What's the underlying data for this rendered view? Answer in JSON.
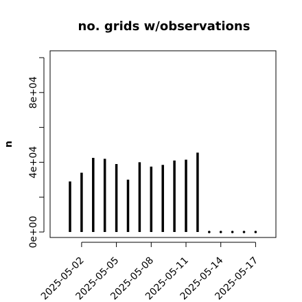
{
  "chart_data": {
    "type": "bar",
    "title": "no. grids w/observations",
    "xlabel": "",
    "ylabel": "n",
    "ylim": [
      0,
      100000
    ],
    "yticks": [
      0,
      20000,
      40000,
      60000,
      80000,
      100000
    ],
    "ytick_labels": [
      "0e+00",
      "",
      "4e+04",
      "",
      "8e+04",
      ""
    ],
    "x": [
      "2025-05-01",
      "2025-05-02",
      "2025-05-03",
      "2025-05-04",
      "2025-05-05",
      "2025-05-06",
      "2025-05-07",
      "2025-05-08",
      "2025-05-09",
      "2025-05-10",
      "2025-05-11",
      "2025-05-12",
      "2025-05-13",
      "2025-05-14",
      "2025-05-15",
      "2025-05-16",
      "2025-05-17"
    ],
    "values": [
      29000,
      34000,
      42500,
      42000,
      39000,
      30000,
      40000,
      37500,
      38500,
      41000,
      41500,
      45500,
      0,
      0,
      0,
      0,
      0
    ],
    "xticks": [
      "2025-05-02",
      "2025-05-05",
      "2025-05-08",
      "2025-05-11",
      "2025-05-14",
      "2025-05-17"
    ],
    "xtick_colors": [
      "#000000",
      "#000000",
      "#228B22",
      "#000000",
      "#000000",
      "#000000"
    ],
    "bar_color": "#000000",
    "grid": false,
    "legend": "none"
  }
}
